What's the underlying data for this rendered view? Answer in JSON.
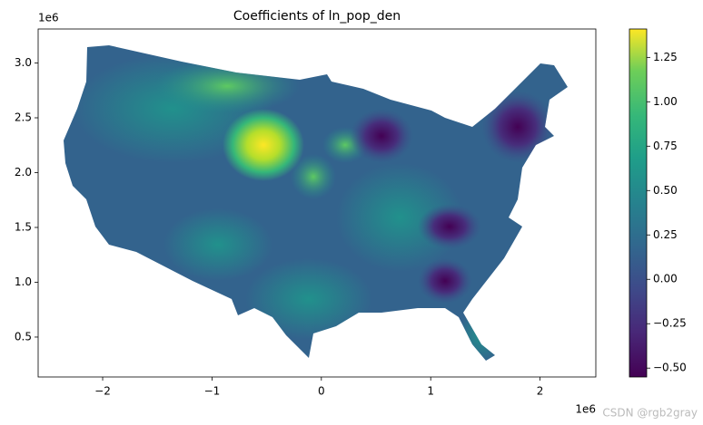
{
  "chart_data": {
    "type": "map",
    "title": "Coefficients of ln_pop_den",
    "xlim": [
      -2.59,
      2.51
    ],
    "ylim": [
      0.136,
      3.31
    ],
    "xticks": [
      {
        "value": -2,
        "label": "−2"
      },
      {
        "value": -1,
        "label": "−1"
      },
      0,
      1,
      2
    ],
    "yticks": [
      0.5,
      {
        "value": 1.0,
        "label": "1.0"
      },
      1.5,
      {
        "value": 2.0,
        "label": "2.0"
      },
      2.5,
      {
        "value": 3.0,
        "label": "3.0"
      }
    ],
    "x_offset_label": "1e6",
    "y_offset_label": "1e6",
    "colorbar": {
      "lim": [
        -0.55,
        1.41
      ],
      "ticks": [
        {
          "value": -0.5,
          "label": "−0.50"
        },
        {
          "value": -0.25,
          "label": "−0.25"
        },
        {
          "value": 0,
          "label": "0.00"
        },
        {
          "value": 0.25,
          "label": "0.25"
        },
        {
          "value": 0.5,
          "label": "0.50"
        },
        {
          "value": 0.75,
          "label": "0.75"
        },
        {
          "value": 1.0,
          "label": "1.00"
        },
        {
          "value": 1.25,
          "label": "1.25"
        }
      ]
    },
    "watermark": "CSDN @rgb2gray"
  }
}
